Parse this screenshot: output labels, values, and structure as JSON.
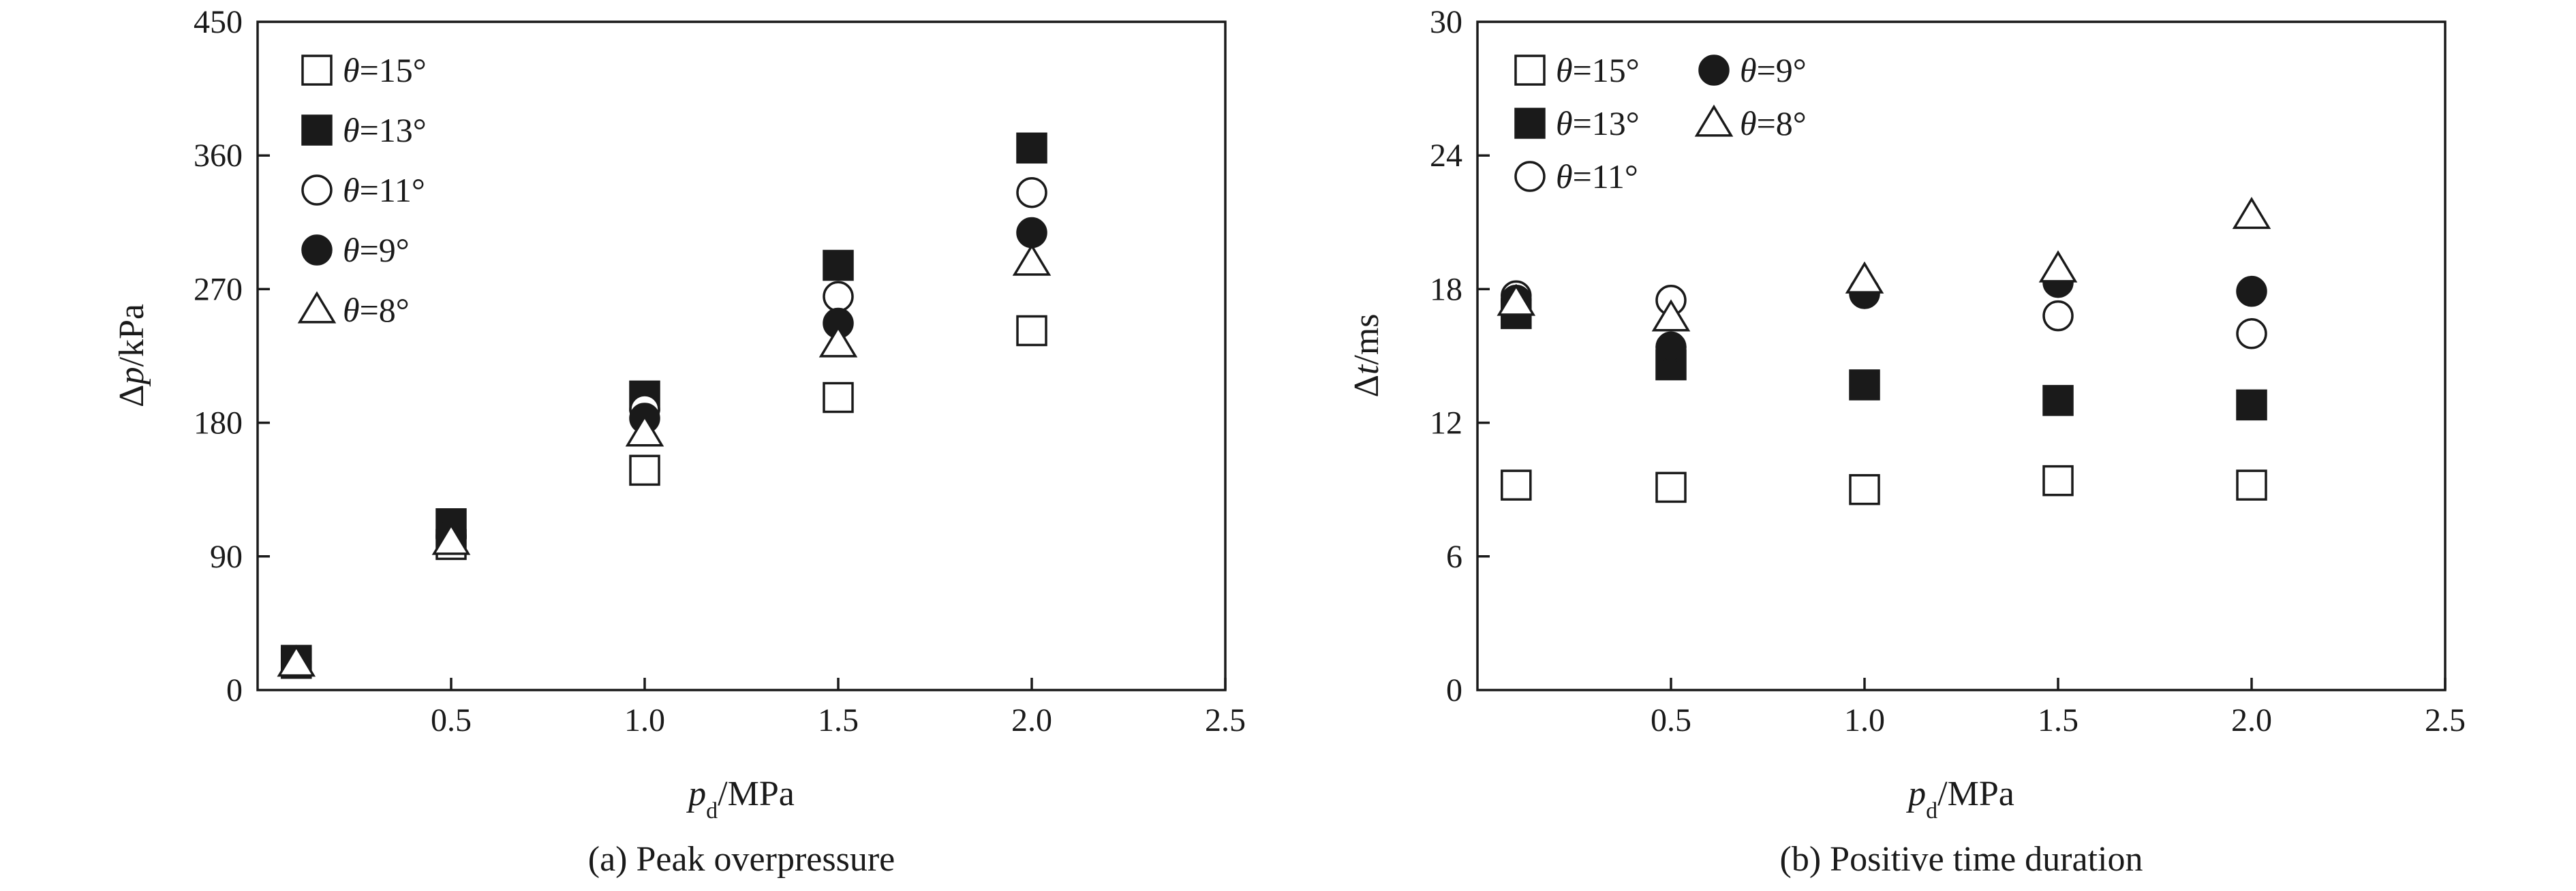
{
  "chart_data": [
    {
      "type": "scatter",
      "caption": "(a) Peak overpressure",
      "ylabel_parts": {
        "delta": "Δ",
        "var": "p",
        "unit": "/kPa"
      },
      "xlabel_parts": {
        "var": "p",
        "sub": "d",
        "unit": "/MPa"
      },
      "xlim": [
        0,
        2.5
      ],
      "ylim": [
        0,
        450
      ],
      "xticks": [
        0.5,
        1.0,
        1.5,
        2.0,
        2.5
      ],
      "xtick_labels": [
        "0.5",
        "1.0",
        "1.5",
        "2.0",
        "2.5"
      ],
      "yticks": [
        0,
        90,
        180,
        270,
        360,
        450
      ],
      "ytick_labels": [
        "0",
        "90",
        "180",
        "270",
        "360",
        "450"
      ],
      "x": [
        0.1,
        0.5,
        1.0,
        1.5,
        2.0
      ],
      "series": [
        {
          "name": "θ=15°",
          "marker": "square-open",
          "values": [
            18,
            98,
            148,
            197,
            242
          ]
        },
        {
          "name": "θ=13°",
          "marker": "square-filled",
          "values": [
            20,
            112,
            198,
            286,
            365
          ]
        },
        {
          "name": "θ=11°",
          "marker": "circle-open",
          "values": [
            19,
            104,
            189,
            265,
            335
          ]
        },
        {
          "name": "θ=9°",
          "marker": "circle-filled",
          "values": [
            18,
            103,
            183,
            247,
            308
          ]
        },
        {
          "name": "θ=8°",
          "marker": "triangle-open",
          "values": [
            18,
            100,
            173,
            233,
            288
          ]
        }
      ],
      "legend": {
        "layout": "single-column",
        "location": "top-left"
      },
      "grid": false
    },
    {
      "type": "scatter",
      "caption": "(b) Positive time duration",
      "ylabel_parts": {
        "delta": "Δ",
        "var": "t",
        "unit": "/ms"
      },
      "xlabel_parts": {
        "var": "p",
        "sub": "d",
        "unit": "/MPa"
      },
      "xlim": [
        0,
        2.5
      ],
      "ylim": [
        0,
        30
      ],
      "xticks": [
        0.5,
        1.0,
        1.5,
        2.0,
        2.5
      ],
      "xtick_labels": [
        "0.5",
        "1.0",
        "1.5",
        "2.0",
        "2.5"
      ],
      "yticks": [
        0,
        6,
        12,
        18,
        24,
        30
      ],
      "ytick_labels": [
        "0",
        "6",
        "12",
        "18",
        "24",
        "30"
      ],
      "x": [
        0.1,
        0.5,
        1.0,
        1.5,
        2.0
      ],
      "series": [
        {
          "name": "θ=15°",
          "marker": "square-open",
          "values": [
            9.2,
            9.1,
            9.0,
            9.4,
            9.2
          ]
        },
        {
          "name": "θ=13°",
          "marker": "square-filled",
          "values": [
            16.9,
            14.6,
            13.7,
            13.0,
            12.8
          ]
        },
        {
          "name": "θ=11°",
          "marker": "circle-open",
          "values": [
            17.7,
            17.5,
            17.9,
            16.8,
            16.0
          ]
        },
        {
          "name": "θ=9°",
          "marker": "circle-filled",
          "values": [
            17.5,
            15.4,
            17.8,
            18.3,
            17.9
          ]
        },
        {
          "name": "θ=8°",
          "marker": "triangle-open",
          "values": [
            17.4,
            16.7,
            18.4,
            18.9,
            21.3
          ]
        }
      ],
      "legend": {
        "layout": "two-column",
        "location": "top-left"
      },
      "grid": false
    }
  ]
}
